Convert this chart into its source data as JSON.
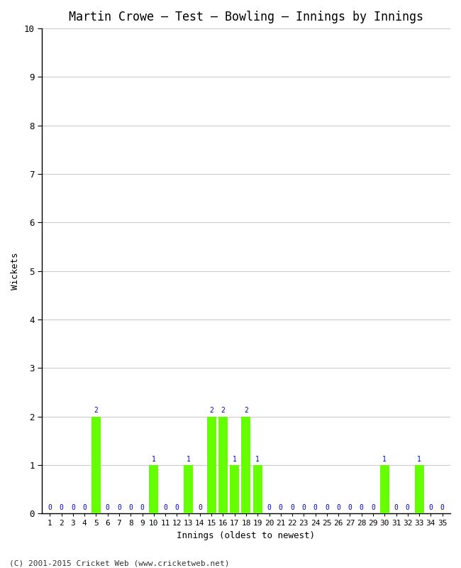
{
  "title": "Martin Crowe – Test – Bowling – Innings by Innings",
  "xlabel": "Innings (oldest to newest)",
  "ylabel": "Wickets",
  "ylim": [
    0,
    10
  ],
  "yticks": [
    0,
    1,
    2,
    3,
    4,
    5,
    6,
    7,
    8,
    9,
    10
  ],
  "innings": [
    1,
    2,
    3,
    4,
    5,
    6,
    7,
    8,
    9,
    10,
    11,
    12,
    13,
    14,
    15,
    16,
    17,
    18,
    19,
    20,
    21,
    22,
    23,
    24,
    25,
    26,
    27,
    28,
    29,
    30,
    31,
    32,
    33,
    34,
    35
  ],
  "wickets": [
    0,
    0,
    0,
    0,
    2,
    0,
    0,
    0,
    0,
    1,
    0,
    0,
    1,
    0,
    2,
    2,
    1,
    2,
    1,
    0,
    0,
    0,
    0,
    0,
    0,
    0,
    0,
    0,
    0,
    1,
    0,
    0,
    1,
    0,
    0
  ],
  "bar_color": "#66ff00",
  "label_color": "#0000cc",
  "background_color": "#ffffff",
  "grid_color": "#cccccc",
  "footer": "(C) 2001-2015 Cricket Web (www.cricketweb.net)",
  "title_fontsize": 12,
  "label_fontsize": 9,
  "tick_fontsize": 8,
  "annotation_fontsize": 7,
  "spine_color": "#000000"
}
